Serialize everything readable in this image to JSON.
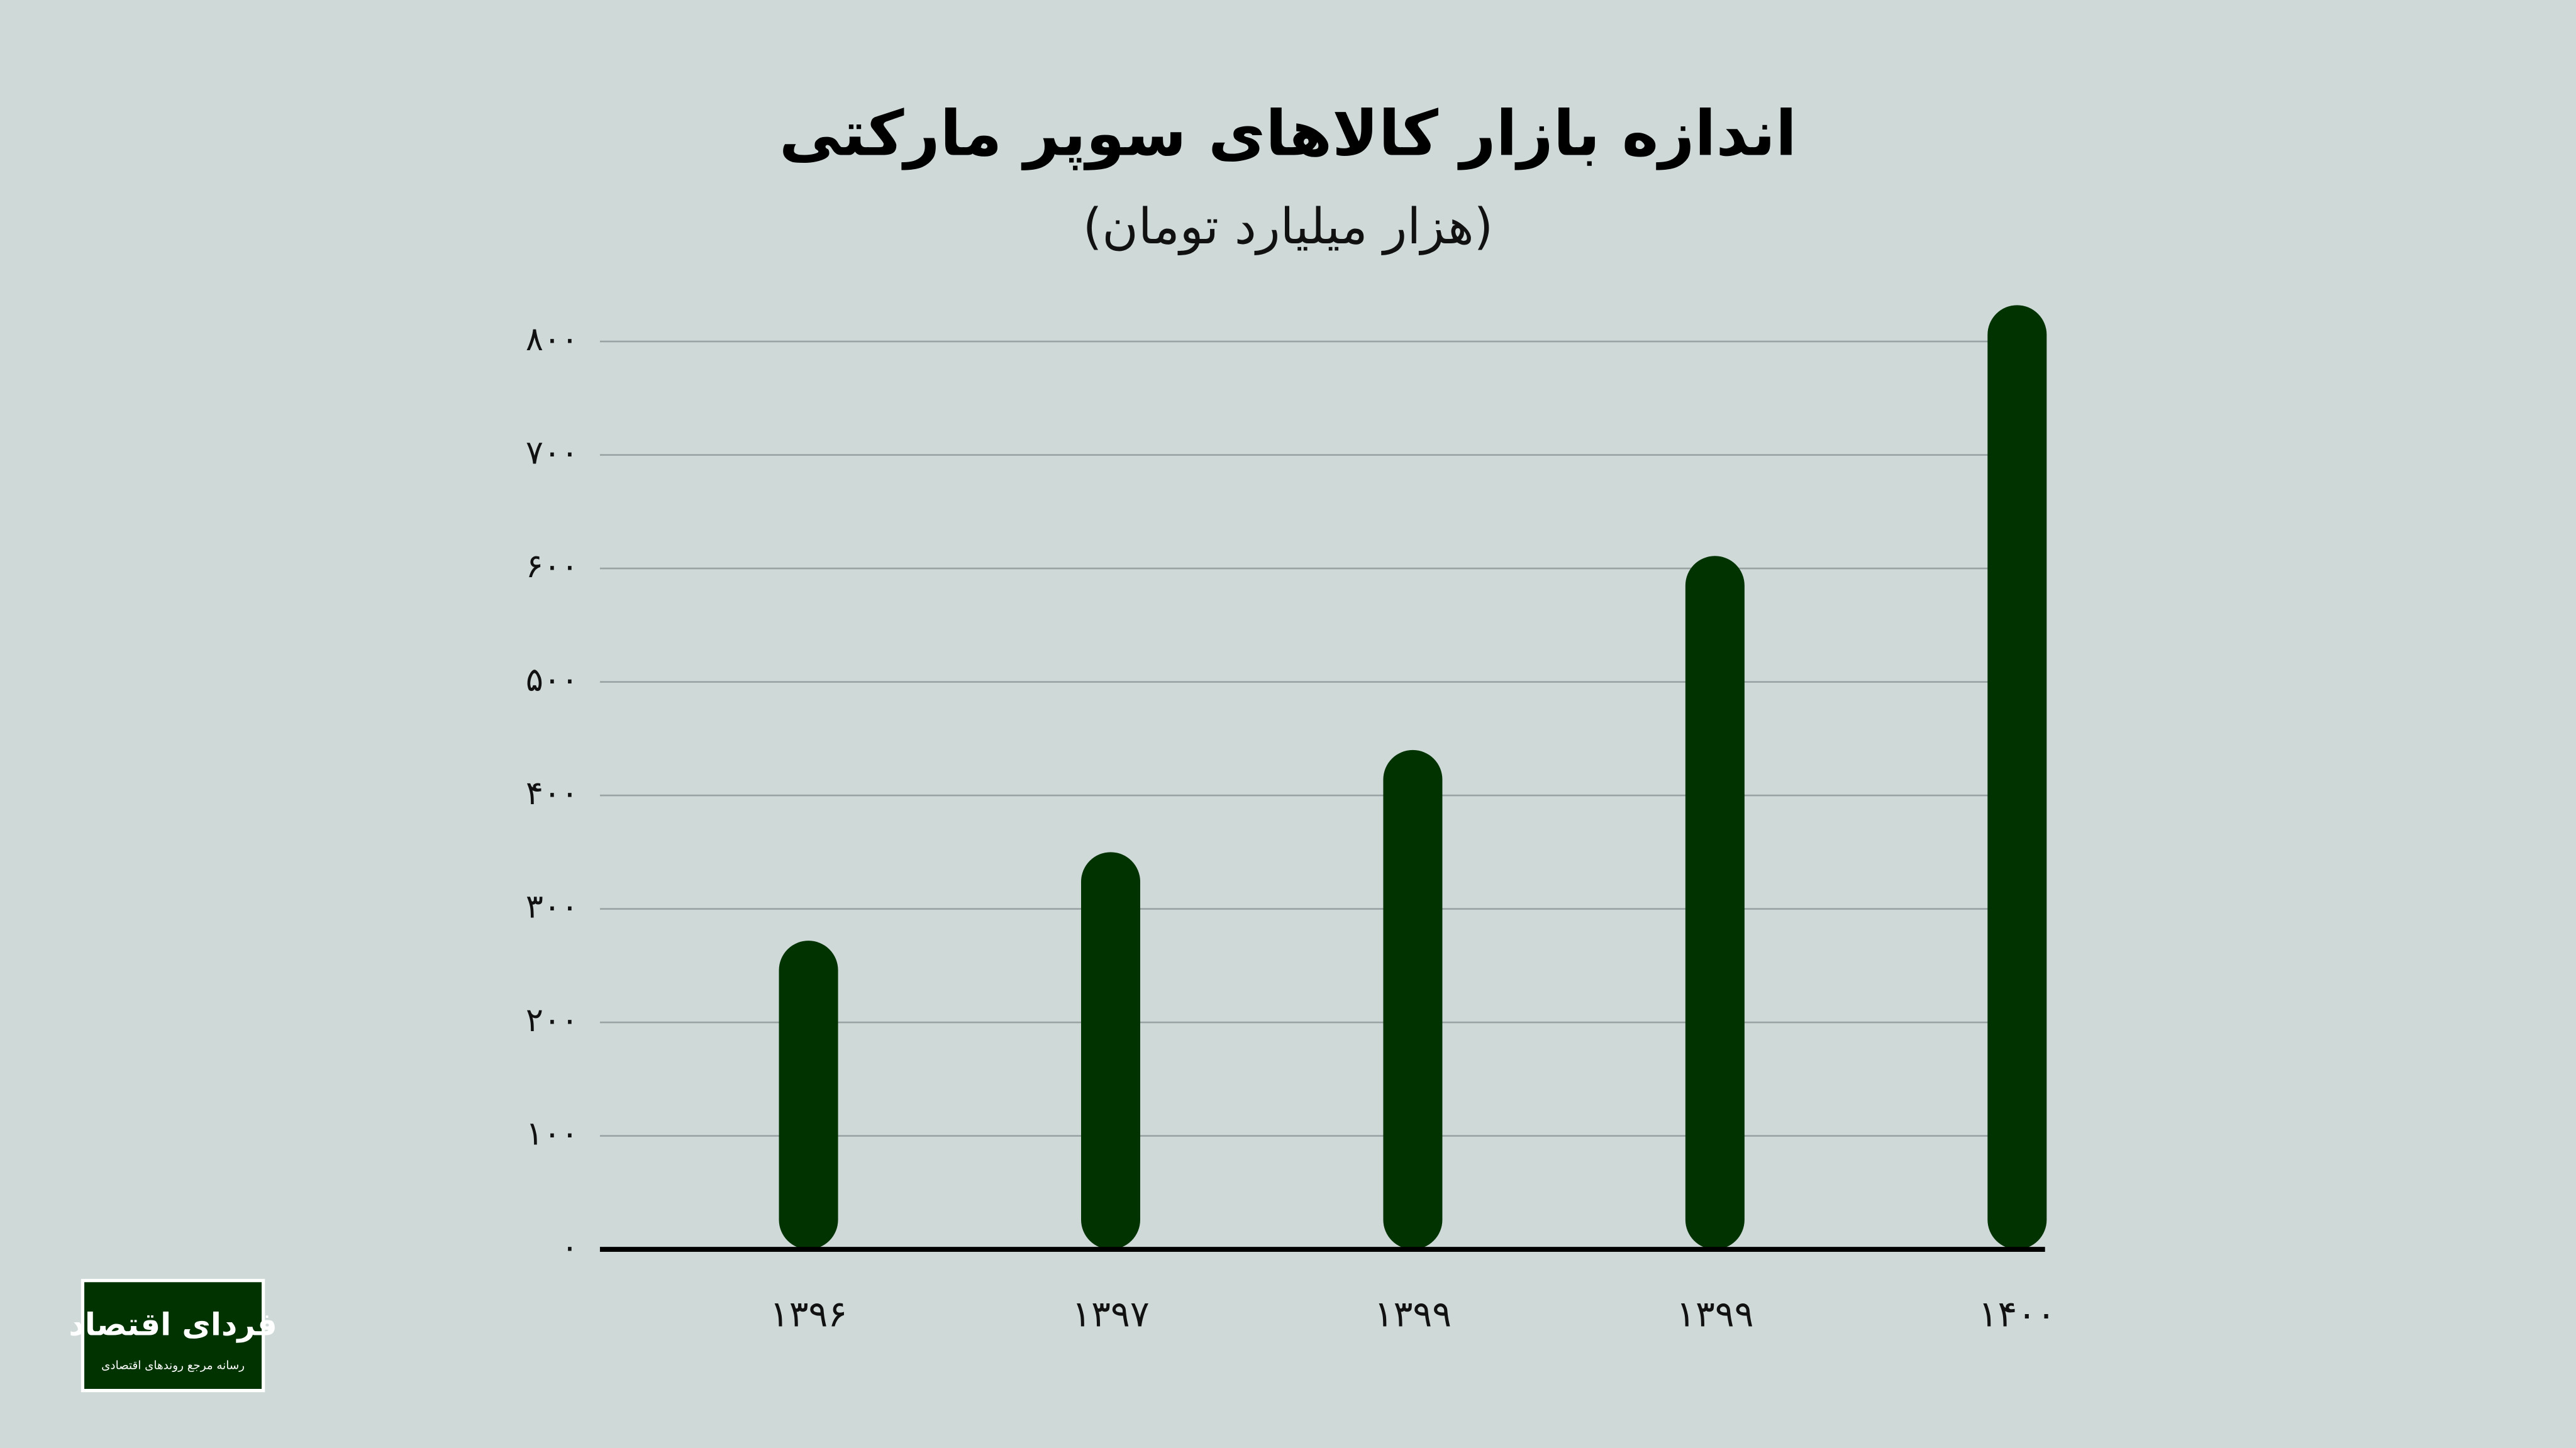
{
  "chart_data": {
    "type": "bar",
    "title": "اندازه بازار کالاهای سوپر مارکتی",
    "subtitle": "(هزار میلیارد تومان)",
    "categories": [
      "۱۳۹۶",
      "۱۳۹۷",
      "۱۳۹۹",
      "۱۳۹۹",
      "۱۴۰۰"
    ],
    "values": [
      272,
      350,
      440,
      611,
      832
    ],
    "color": "#003300",
    "ylim": [
      0,
      800
    ],
    "yticks": [
      {
        "value": 0,
        "label": "۰"
      },
      {
        "value": 100,
        "label": "۱۰۰"
      },
      {
        "value": 200,
        "label": "۲۰۰"
      },
      {
        "value": 300,
        "label": "۳۰۰"
      },
      {
        "value": 400,
        "label": "۴۰۰"
      },
      {
        "value": 500,
        "label": "۵۰۰"
      },
      {
        "value": 600,
        "label": "۶۰۰"
      },
      {
        "value": 700,
        "label": "۷۰۰"
      },
      {
        "value": 800,
        "label": "۸۰۰"
      }
    ],
    "grid": true
  },
  "logo": {
    "name": "فردای اقتصاد",
    "tagline": "رسانه مرجع روندهای اقتصادی"
  }
}
